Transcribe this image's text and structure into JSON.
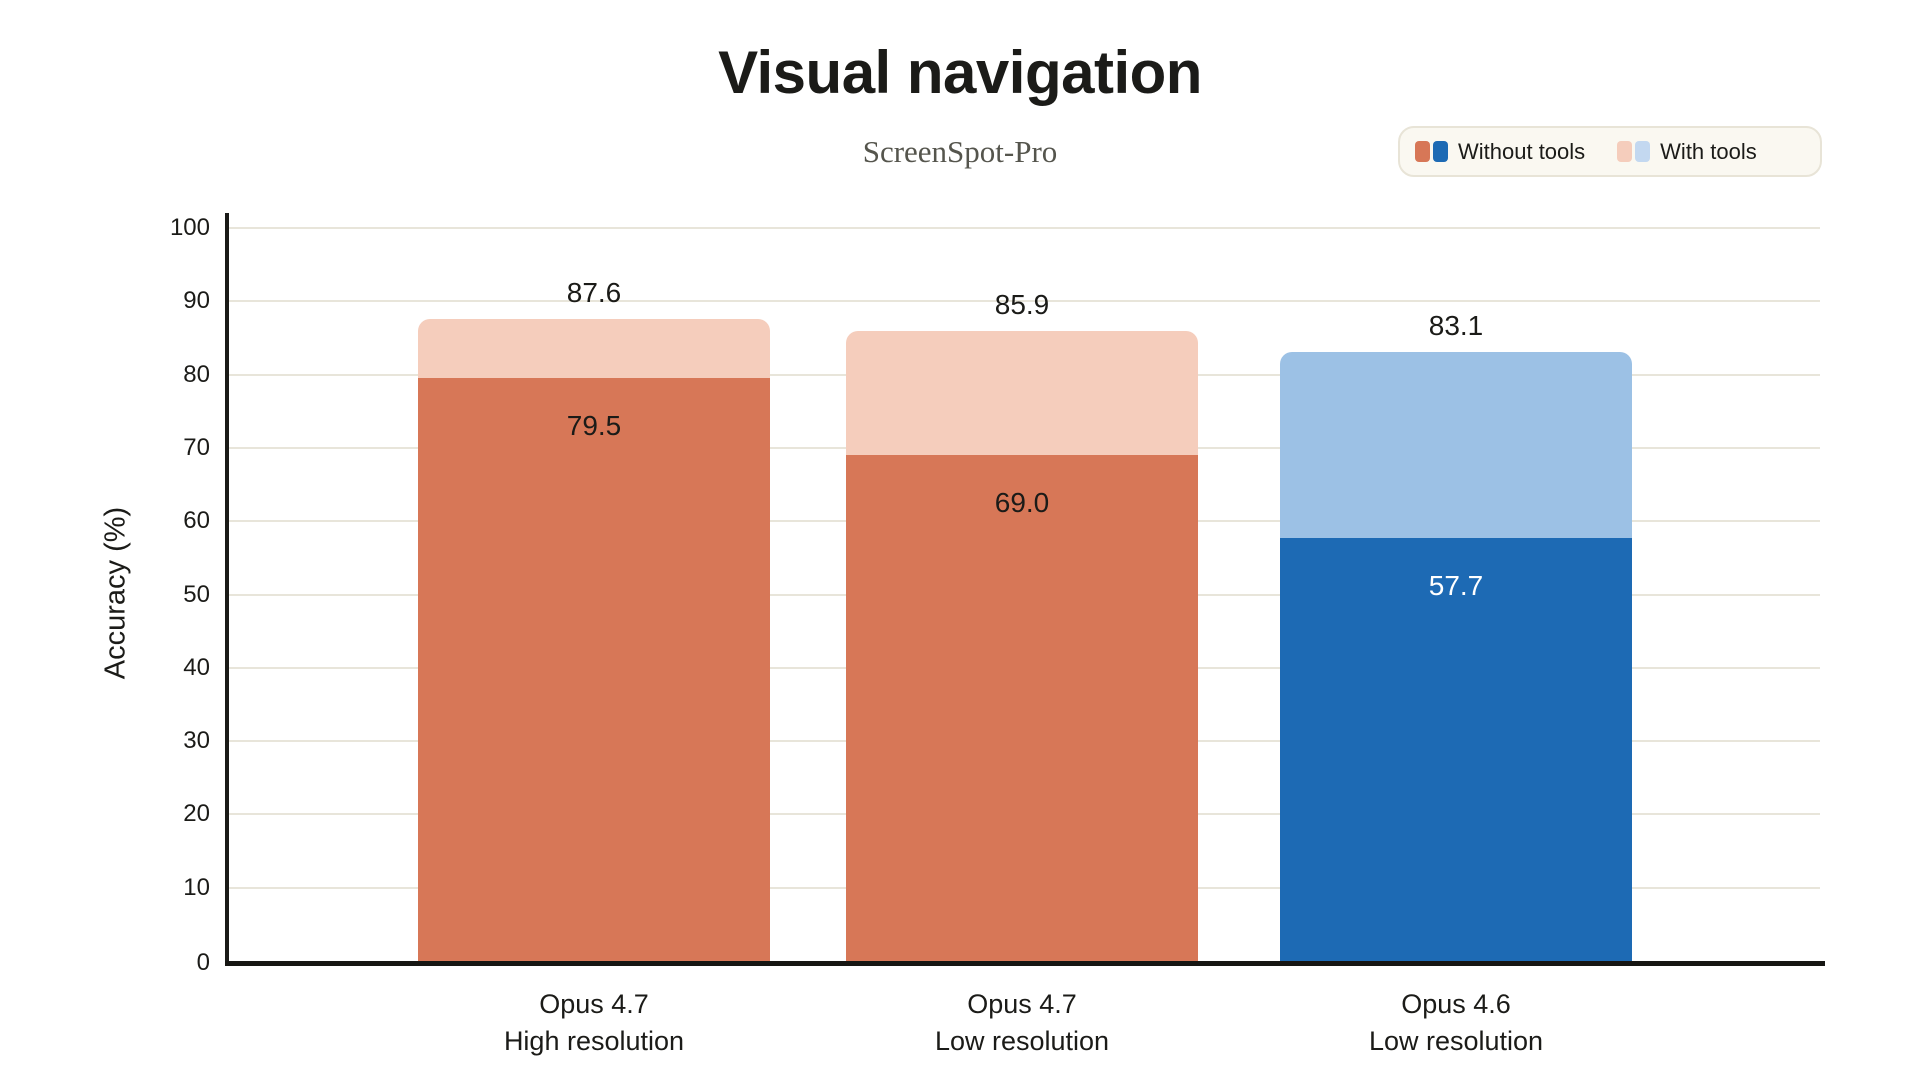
{
  "colors": {
    "background": "#ffffff",
    "axis": "#1a1a17",
    "grid": "#e8e5da",
    "title": "#1b1b18",
    "subtitle": "#55554d",
    "legend_bg": "#faf8f1",
    "legend_border": "#e8e4d7",
    "orange": "#d77757",
    "orange_light": "#f5cdbc",
    "blue": "#1d6ab4",
    "blue_light": "#9cc1e5"
  },
  "chart_data": {
    "type": "bar",
    "variant": "stacked-overlay",
    "title": "Visual navigation",
    "subtitle": "ScreenSpot-Pro",
    "ylabel": "Accuracy (%)",
    "ylim": [
      0,
      100
    ],
    "ytick_step": 10,
    "grid": "horizontal",
    "legend_position": "top-right",
    "categories": [
      {
        "line1": "Opus 4.7",
        "line2": "High resolution"
      },
      {
        "line1": "Opus 4.7",
        "line2": "Low resolution"
      },
      {
        "line1": "Opus 4.6",
        "line2": "Low resolution"
      }
    ],
    "series": [
      {
        "name": "Without tools",
        "values": [
          79.5,
          69.0,
          57.7
        ],
        "labels": [
          "79.5",
          "69.0",
          "57.7"
        ]
      },
      {
        "name": "With tools",
        "values": [
          87.6,
          85.9,
          83.1
        ],
        "labels": [
          "87.6",
          "85.9",
          "83.1"
        ]
      }
    ],
    "bars": [
      {
        "without_color": "#d77757",
        "with_color": "#f5cdbc",
        "inner_label_color": "#1b1b18"
      },
      {
        "without_color": "#d77757",
        "with_color": "#f5cdbc",
        "inner_label_color": "#1b1b18"
      },
      {
        "without_color": "#1d6ab4",
        "with_color": "#9cc1e5",
        "inner_label_color": "#ffffff"
      }
    ],
    "yticks": [
      "0",
      "10",
      "20",
      "30",
      "40",
      "50",
      "60",
      "70",
      "80",
      "90",
      "100"
    ]
  },
  "legend": {
    "items": [
      {
        "label": "Without tools",
        "swatches": [
          "#d77757",
          "#1d6ab4"
        ]
      },
      {
        "label": "With tools",
        "swatches": [
          "#f5cdbc",
          "#c3d8f0"
        ]
      }
    ]
  }
}
